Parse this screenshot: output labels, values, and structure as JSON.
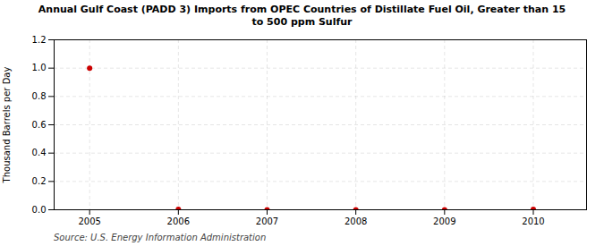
{
  "chart_data": {
    "type": "scatter",
    "title": "Annual Gulf Coast (PADD 3) Imports from OPEC Countries of Distillate Fuel Oil, Greater than 15\nto 500 ppm Sulfur",
    "ylabel": "Thousand Barrels per Day",
    "source": "Source: U.S. Energy Information Administration",
    "x": [
      2005,
      2006,
      2007,
      2008,
      2009,
      2010
    ],
    "values": [
      1.0,
      0.003,
      0.0,
      0.0,
      0.0,
      0.003
    ],
    "color": "#cc0000",
    "xlim": [
      2004.6,
      2010.6
    ],
    "xticks": [
      2005,
      2006,
      2007,
      2008,
      2009,
      2010
    ],
    "ylim": [
      0.0,
      1.2
    ],
    "yticks": [
      {
        "value": 0.0,
        "label": "0.0"
      },
      0.2,
      0.4,
      0.6,
      0.8,
      {
        "value": 1.0,
        "label": "1.0"
      },
      1.2
    ],
    "grid": true
  }
}
